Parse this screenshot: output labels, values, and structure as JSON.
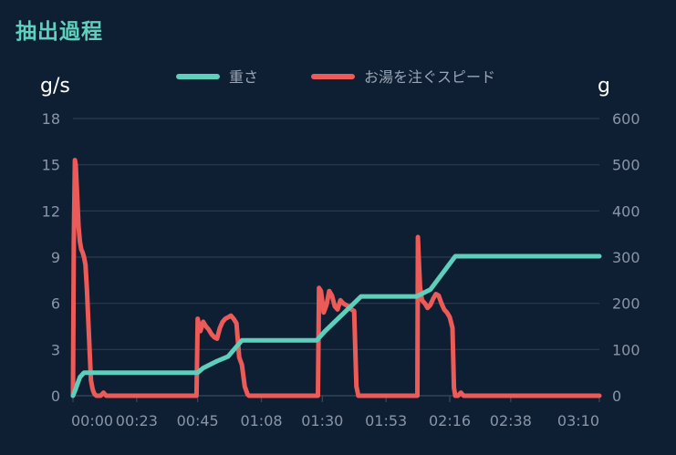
{
  "title": "抽出過程",
  "colors": {
    "background": "#0f1f33",
    "title": "#5fd0bd",
    "weight": "#5ecfbd",
    "pour_speed": "#ec5b58",
    "grid": "#2c3b4f",
    "tick": "#8a96a6"
  },
  "chart_data": {
    "type": "line",
    "title": "抽出過程",
    "legend_position": "top-center",
    "grid": true,
    "x_axis": {
      "label": "",
      "ticks": [
        "00:00",
        "00:23",
        "00:45",
        "01:08",
        "01:30",
        "01:53",
        "02:16",
        "02:38",
        "03:10"
      ],
      "tick_seconds": [
        0,
        23,
        45,
        68,
        90,
        113,
        136,
        158,
        190
      ],
      "range_seconds": [
        0,
        190
      ]
    },
    "y_axis_left": {
      "unit": "g/s",
      "ticks": [
        "0",
        "3",
        "6",
        "9",
        "12",
        "15",
        "18"
      ],
      "range": [
        0,
        18
      ]
    },
    "y_axis_right": {
      "unit": "g",
      "ticks": [
        "0",
        "100",
        "200",
        "300",
        "400",
        "500",
        "600"
      ],
      "range": [
        0,
        600
      ]
    },
    "series": [
      {
        "name": "重さ",
        "axis": "right",
        "color": "#5ecfbd",
        "x_seconds": [
          0,
          1,
          2.5,
          4,
          45,
          47,
          52,
          56,
          61,
          70,
          88,
          91,
          104,
          124,
          129,
          138,
          190
        ],
        "values": [
          0,
          15,
          40,
          50,
          50,
          60,
          75,
          85,
          120,
          120,
          120,
          140,
          215,
          215,
          230,
          302,
          302
        ]
      },
      {
        "name": "お湯を注ぐスピード",
        "axis": "left",
        "color": "#ec5b58",
        "x_seconds": [
          0,
          0.3,
          0.7,
          1,
          1.5,
          2,
          2.5,
          3,
          3.5,
          4,
          4.5,
          5,
          5.5,
          6,
          6.5,
          7,
          7.3,
          7.8,
          8.5,
          10,
          11,
          12,
          44.6,
          45,
          45.5,
          46,
          47,
          48,
          49,
          50,
          51,
          52,
          53,
          54,
          55,
          56,
          57,
          58,
          59,
          60,
          61,
          62,
          63,
          63.5,
          64,
          88.4,
          88.8,
          89.5,
          90.5,
          91.5,
          92.5,
          93.5,
          94.5,
          95.5,
          96.5,
          97.5,
          98.5,
          99.5,
          100.5,
          101.5,
          102.3,
          103,
          104,
          124.3,
          124.5,
          124.9,
          125.3,
          126,
          127,
          128,
          129,
          130,
          131,
          132,
          133,
          134,
          135,
          136,
          137,
          137.5,
          138,
          138.5,
          139,
          140,
          141,
          143,
          144,
          145,
          190
        ],
        "values": [
          0,
          10,
          15.3,
          15,
          13,
          11,
          10,
          9.5,
          9.3,
          9,
          8.5,
          7,
          5,
          3,
          1,
          0.5,
          0.3,
          0.1,
          0,
          0,
          0.2,
          0,
          0,
          5,
          4.5,
          4.2,
          4.8,
          4.5,
          4.3,
          4,
          3.8,
          3.7,
          4.4,
          4.8,
          5.0,
          5.1,
          5.2,
          5.0,
          4.7,
          2.5,
          2.0,
          0.6,
          0.1,
          0,
          0,
          0,
          7.0,
          6.8,
          5.4,
          5.9,
          6.8,
          6.5,
          5.8,
          5.6,
          6.2,
          6.0,
          5.9,
          5.8,
          5.6,
          5.5,
          0.6,
          0,
          0,
          0,
          10.3,
          8.5,
          7.0,
          6.2,
          6.0,
          5.7,
          5.9,
          6.3,
          6.6,
          6.5,
          6.0,
          5.6,
          5.4,
          5.1,
          4.4,
          0.5,
          0,
          0,
          0,
          0.2,
          0,
          0,
          0,
          0,
          0
        ]
      }
    ]
  }
}
